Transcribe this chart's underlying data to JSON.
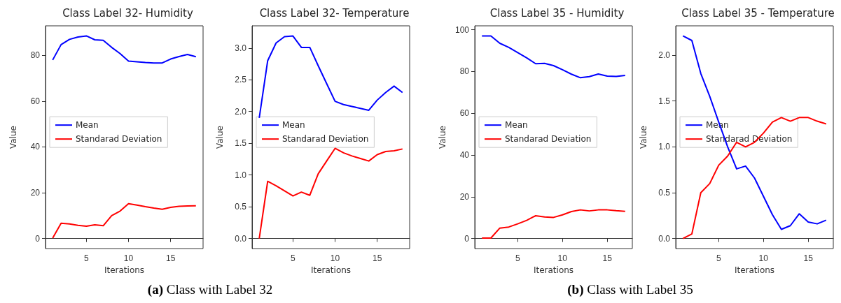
{
  "chart_data": [
    {
      "type": "line",
      "title": "Class Label 32- Humidity",
      "xlabel": "Iterations",
      "ylabel": "Value",
      "x": [
        1,
        2,
        3,
        4,
        5,
        6,
        7,
        8,
        9,
        10,
        11,
        12,
        13,
        14,
        15,
        16,
        17,
        18
      ],
      "xlim": [
        0.15,
        18.85
      ],
      "xticks": [
        5,
        10,
        15
      ],
      "ylim": [
        -4.4,
        92.9
      ],
      "yticks": [
        0,
        20,
        40,
        60,
        80
      ],
      "legend": "center left",
      "annotations": [
        "(a) Class with Label 32"
      ],
      "series": [
        {
          "name": "Mean",
          "color": "#0000ff",
          "values": [
            78,
            84.7,
            87,
            88,
            88.5,
            86.8,
            86.6,
            83.5,
            80.8,
            77.5,
            77.2,
            76.9,
            76.7,
            76.7,
            78.4,
            79.5,
            80.4,
            79.4
          ]
        },
        {
          "name": "Standarad Deviation",
          "color": "#ff0000",
          "values": [
            0.2,
            6.7,
            6.4,
            5.8,
            5.4,
            6,
            5.6,
            10,
            12,
            15.2,
            14.6,
            13.9,
            13.3,
            12.8,
            13.6,
            14.1,
            14.2,
            14.3
          ]
        }
      ]
    },
    {
      "type": "line",
      "title": "Class Label 32- Temperature",
      "xlabel": "Iterations",
      "ylabel": "Value",
      "x": [
        1,
        2,
        3,
        4,
        5,
        6,
        7,
        8,
        9,
        10,
        11,
        12,
        13,
        14,
        15,
        16,
        17,
        18
      ],
      "xlim": [
        0.15,
        18.85
      ],
      "xticks": [
        5,
        10,
        15
      ],
      "ylim": [
        -0.16,
        3.35
      ],
      "yticks": [
        {
          "value": 0,
          "label": "0.0"
        },
        0.5,
        {
          "value": 1,
          "label": "1.0"
        },
        1.5,
        {
          "value": 2,
          "label": "2.0"
        },
        2.5,
        {
          "value": 3,
          "label": "3.0"
        }
      ],
      "legend": "center left",
      "series": [
        {
          "name": "Mean",
          "color": "#0000ff",
          "values": [
            1.9,
            2.8,
            3.08,
            3.18,
            3.19,
            3.01,
            3.01,
            2.72,
            2.44,
            2.16,
            2.11,
            2.08,
            2.05,
            2.02,
            2.18,
            2.3,
            2.4,
            2.3
          ]
        },
        {
          "name": "Standarad Deviation",
          "color": "#ff0000",
          "values": [
            0,
            0.9,
            0.83,
            0.75,
            0.67,
            0.73,
            0.68,
            1.02,
            1.22,
            1.42,
            1.35,
            1.3,
            1.26,
            1.22,
            1.32,
            1.37,
            1.38,
            1.41
          ]
        }
      ]
    },
    {
      "type": "line",
      "title": "Class Label 35 - Humidity",
      "xlabel": "Iterations",
      "ylabel": "Value",
      "x": [
        1,
        2,
        3,
        4,
        5,
        6,
        7,
        8,
        9,
        10,
        11,
        12,
        13,
        14,
        15,
        16,
        17
      ],
      "xlim": [
        0.2,
        17.8
      ],
      "xticks": [
        5,
        10,
        15
      ],
      "ylim": [
        -4.85,
        101.85
      ],
      "yticks": [
        0,
        20,
        40,
        60,
        80,
        100
      ],
      "legend": "center left",
      "annotations": [
        "(b) Class with Label 35"
      ],
      "series": [
        {
          "name": "Mean",
          "color": "#0000ff",
          "values": [
            97,
            97,
            93.5,
            91.5,
            89,
            86.5,
            83.7,
            83.9,
            82.8,
            80.8,
            78.7,
            77,
            77.5,
            78.8,
            77.8,
            77.6,
            78.1
          ]
        },
        {
          "name": "Standarad Deviation",
          "color": "#ff0000",
          "values": [
            0.2,
            0.2,
            5,
            5.5,
            7,
            8.7,
            10.9,
            10.3,
            10.1,
            11.3,
            12.9,
            13.7,
            13.2,
            13.7,
            13.7,
            13.3,
            13
          ]
        }
      ]
    },
    {
      "type": "line",
      "title": "Class Label 35 - Temperature",
      "xlabel": "Iterations",
      "ylabel": "Value",
      "x": [
        1,
        2,
        3,
        4,
        5,
        6,
        7,
        8,
        9,
        10,
        11,
        12,
        13,
        14,
        15,
        16,
        17
      ],
      "xlim": [
        0.2,
        17.8
      ],
      "xticks": [
        5,
        10,
        15
      ],
      "ylim": [
        -0.11,
        2.32
      ],
      "yticks": [
        {
          "value": 0,
          "label": "0.0"
        },
        0.5,
        {
          "value": 1,
          "label": "1.0"
        },
        1.5,
        {
          "value": 2,
          "label": "2.0"
        }
      ],
      "legend": "center left",
      "series": [
        {
          "name": "Mean",
          "color": "#0000ff",
          "values": [
            2.21,
            2.16,
            1.8,
            1.55,
            1.27,
            1.0,
            0.76,
            0.79,
            0.66,
            0.46,
            0.26,
            0.1,
            0.14,
            0.27,
            0.18,
            0.16,
            0.2
          ]
        },
        {
          "name": "Standarad Deviation",
          "color": "#ff0000",
          "values": [
            0,
            0.05,
            0.5,
            0.6,
            0.8,
            0.9,
            1.05,
            1.0,
            1.05,
            1.15,
            1.27,
            1.32,
            1.28,
            1.32,
            1.32,
            1.28,
            1.25
          ]
        }
      ]
    }
  ]
}
